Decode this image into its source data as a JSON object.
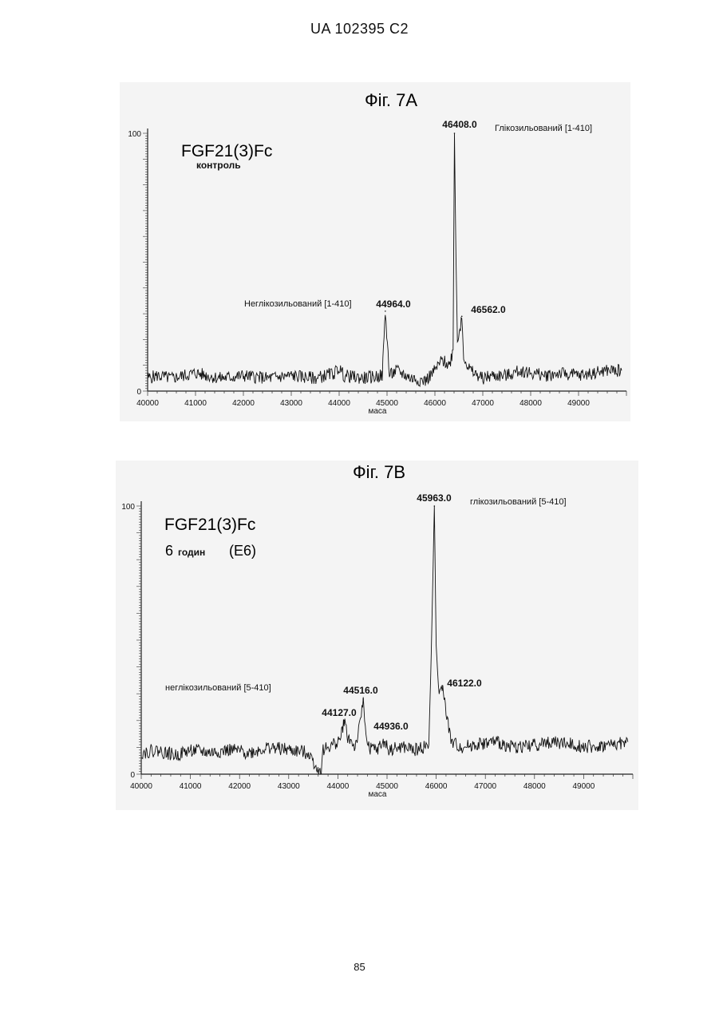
{
  "header": {
    "doc_code": "UA   102395   C2"
  },
  "footer": {
    "page_number": "85"
  },
  "chart_data": [
    {
      "type": "line",
      "title": "Фіг. 7A",
      "xlabel": "маса",
      "ylabel": "",
      "xlim": [
        40000,
        50000
      ],
      "ylim": [
        0,
        100
      ],
      "x_ticks": [
        "40000",
        "41000",
        "42000",
        "43000",
        "44000",
        "45000",
        "46000",
        "47000",
        "48000",
        "49000"
      ],
      "y_ticks": [
        "0",
        "100"
      ],
      "inset_title": "FGF21(3)Fc",
      "inset_subtitle": "контроль",
      "annotations": [
        {
          "text": "Глікозильований [1-410]"
        },
        {
          "text": "Неглікозильований [1-410]"
        }
      ],
      "peaks": [
        {
          "x": 44964.0,
          "y": 31,
          "label": "44964.0"
        },
        {
          "x": 46408.0,
          "y": 100,
          "label": "46408.0"
        },
        {
          "x": 46562.0,
          "y": 29,
          "label": "46562.0"
        }
      ],
      "series": [
        {
          "x": [
            40000,
            40200,
            40500,
            41000,
            41500,
            42000,
            42500,
            43000,
            43500,
            43900,
            44000,
            44100,
            44500,
            44900,
            44964,
            45050,
            45200,
            45500,
            45800,
            46000,
            46150,
            46300,
            46380,
            46408,
            46440,
            46470,
            46520,
            46562,
            46600,
            46700,
            46800,
            47000,
            47200,
            47500,
            47800,
            48000,
            48300,
            48600,
            49000,
            49300,
            49600,
            49900
          ],
          "y": [
            5,
            6,
            5,
            7,
            5,
            6,
            5,
            6,
            5,
            7,
            9,
            6,
            5,
            6,
            31,
            6,
            8,
            5,
            4,
            8,
            12,
            10,
            16,
            100,
            52,
            20,
            24,
            29,
            14,
            9,
            7,
            5,
            6,
            6,
            8,
            7,
            6,
            7,
            6,
            7,
            8,
            8
          ]
        }
      ]
    },
    {
      "type": "line",
      "title": "Фіг. 7B",
      "xlabel": "маса",
      "ylabel": "",
      "xlim": [
        40000,
        50000
      ],
      "ylim": [
        0,
        100
      ],
      "x_ticks": [
        "40000",
        "41000",
        "42000",
        "43000",
        "44000",
        "45000",
        "46000",
        "47000",
        "48000",
        "49000"
      ],
      "y_ticks": [
        "0",
        "100"
      ],
      "inset_title": "FGF21(3)Fc",
      "inset_subtitle_num": "6",
      "inset_subtitle_word": "годин",
      "inset_subtitle_code": "(E6)",
      "annotations": [
        {
          "text": "глікозильований [5-410]"
        },
        {
          "text": "неглікозильований [5-410]"
        }
      ],
      "peaks": [
        {
          "x": 44127.0,
          "y": 20,
          "label": "44127.0"
        },
        {
          "x": 44516.0,
          "y": 28,
          "label": "44516.0"
        },
        {
          "x": 44936.0,
          "y": 12,
          "label": "44936.0"
        },
        {
          "x": 45963.0,
          "y": 100,
          "label": "45963.0"
        },
        {
          "x": 46122.0,
          "y": 33,
          "label": "46122.0"
        }
      ],
      "series": [
        {
          "x": [
            40000,
            40300,
            40700,
            41000,
            41400,
            41800,
            42200,
            42600,
            43000,
            43400,
            43650,
            43700,
            43900,
            44050,
            44127,
            44200,
            44350,
            44450,
            44516,
            44600,
            44800,
            44936,
            45050,
            45300,
            45600,
            45850,
            45900,
            45963,
            46000,
            46060,
            46122,
            46200,
            46300,
            46500,
            46800,
            47200,
            47600,
            48000,
            48400,
            48800,
            49200,
            49600,
            49900
          ],
          "y": [
            8,
            9,
            7,
            9,
            8,
            9,
            8,
            10,
            9,
            8,
            0,
            9,
            11,
            13,
            20,
            14,
            10,
            18,
            28,
            10,
            9,
            12,
            9,
            10,
            9,
            11,
            45,
            100,
            48,
            28,
            33,
            24,
            12,
            10,
            11,
            12,
            10,
            11,
            12,
            11,
            10,
            11,
            12
          ]
        }
      ]
    }
  ]
}
